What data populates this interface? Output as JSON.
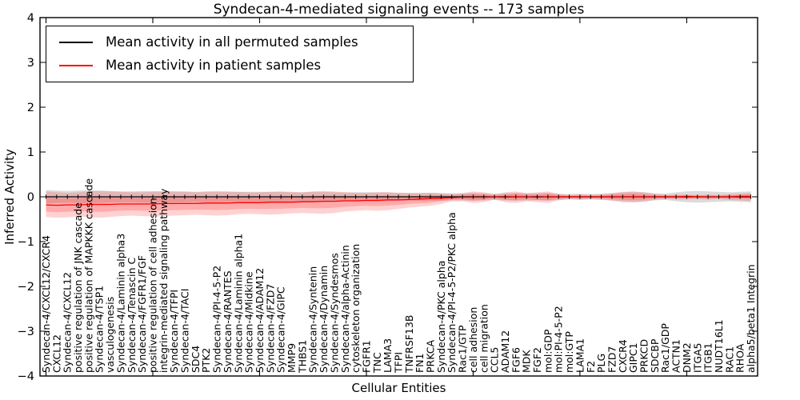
{
  "chart_data": {
    "type": "line",
    "title": "Syndecan-4-mediated signaling events -- 173 samples",
    "xlabel": "Cellular Entities",
    "ylabel": "Inferred Activity",
    "ylim": [
      -4,
      4
    ],
    "yticks": [
      -4,
      -3,
      -2,
      -1,
      0,
      1,
      2,
      3,
      4
    ],
    "x_major_tick_every": 10,
    "grid": false,
    "legend_position": "upper left",
    "legend": {
      "entries": [
        {
          "label": "Mean activity in all permuted samples",
          "color": "#000000"
        },
        {
          "label": "Mean activity in patient samples",
          "color": "#ff0000"
        }
      ]
    },
    "colors": {
      "patient_line": "#ff0000",
      "permuted_line": "#000000",
      "patient_band": "#ff3333",
      "permuted_band": "#888888",
      "axis": "#000000"
    },
    "categories": [
      "Syndecan-4/CXCL12/CXCR4",
      "CXCL12",
      "Syndecan-4/CXCL12",
      "positive regulation of JNK cascade",
      "positive regulation of MAPKKK cascade",
      "Syndecan-4/TSP1",
      "vasculogenesis",
      "Syndecan-4/Laminin alpha3",
      "Syndecan-4/Tenascin C",
      "Syndecan-4/FGFR1/FGF",
      "positive regulation of cell adhesion",
      "integrin-mediated signaling pathway",
      "Syndecan-4/TFPI",
      "Syndecan-4/TACI",
      "SDC4",
      "PTK2",
      "Syndecan-4/PI-4-5-P2",
      "Syndecan-4/RANTES",
      "Syndecan-4/Laminin alpha1",
      "Syndecan-4/Midkine",
      "Syndecan-4/ADAM12",
      "Syndecan-4/FZD7",
      "Syndecan-4/GIPC",
      "MMP9",
      "THBS1",
      "Syndecan-4/Syntenin",
      "Syndecan-4/Dynamin",
      "Syndecan-4/Syndesmos",
      "Syndecan-4/alpha-Actinin",
      "cytoskeleton organization",
      "FGFR1",
      "TNC",
      "LAMA3",
      "TFPI",
      "TNFRSF13B",
      "FN1",
      "PRKCA",
      "Syndecan-4/PKC alpha",
      "Syndecan-4/PI-4-5-P2/PKC alpha",
      "Rac1/GTP",
      "cell adhesion",
      "cell migration",
      "CCL5",
      "ADAM12",
      "FGF6",
      "MDK",
      "FGF2",
      "mol:GDP",
      "mol:PI-4-5-P2",
      "mol:GTP",
      "LAMA1",
      "F2",
      "PLG",
      "FZD7",
      "CXCR4",
      "GIPC1",
      "PRKCD",
      "SDCBP",
      "Rac1/GDP",
      "ACTN1",
      "DNM2",
      "ITGA5",
      "ITGB1",
      "NUDT16L1",
      "RAC1",
      "RHOA",
      "alpha5/beta1 Integrin"
    ],
    "series": [
      {
        "name": "Mean activity in all permuted samples",
        "color": "#000000",
        "values": [
          0,
          0,
          0,
          0,
          0,
          0,
          0,
          0,
          0,
          0,
          0,
          0,
          0,
          0,
          0,
          0,
          0,
          0,
          0,
          0,
          0,
          0,
          0,
          0,
          0,
          0,
          0,
          0,
          0,
          0,
          0,
          0,
          0,
          0,
          0,
          0,
          0,
          0,
          0,
          0,
          0,
          0,
          0,
          0,
          0,
          0,
          0,
          0,
          0,
          0,
          0,
          0,
          0,
          0,
          0,
          0,
          0,
          0,
          0,
          0,
          0,
          0,
          0,
          0,
          0,
          0,
          0
        ],
        "band_halfwidth": [
          0.15,
          0.14,
          0.13,
          0.14,
          0.15,
          0.14,
          0.13,
          0.12,
          0.12,
          0.13,
          0.13,
          0.12,
          0.12,
          0.12,
          0.11,
          0.12,
          0.12,
          0.11,
          0.11,
          0.11,
          0.11,
          0.11,
          0.11,
          0.1,
          0.1,
          0.11,
          0.11,
          0.1,
          0.1,
          0.1,
          0.1,
          0.1,
          0.1,
          0.09,
          0.09,
          0.09,
          0.09,
          0.08,
          0.08,
          0.08,
          0.09,
          0.08,
          0.07,
          0.08,
          0.09,
          0.08,
          0.08,
          0.09,
          0.07,
          0.06,
          0.07,
          0.06,
          0.07,
          0.08,
          0.1,
          0.11,
          0.1,
          0.08,
          0.07,
          0.1,
          0.12,
          0.13,
          0.12,
          0.11,
          0.1,
          0.11,
          0.12
        ]
      },
      {
        "name": "Mean activity in patient samples",
        "color": "#ff0000",
        "values": [
          -0.18,
          -0.19,
          -0.18,
          -0.18,
          -0.17,
          -0.17,
          -0.17,
          -0.16,
          -0.16,
          -0.16,
          -0.16,
          -0.15,
          -0.15,
          -0.15,
          -0.15,
          -0.14,
          -0.14,
          -0.14,
          -0.13,
          -0.13,
          -0.13,
          -0.12,
          -0.12,
          -0.12,
          -0.11,
          -0.11,
          -0.1,
          -0.1,
          -0.09,
          -0.09,
          -0.08,
          -0.08,
          -0.07,
          -0.07,
          -0.06,
          -0.05,
          -0.04,
          -0.03,
          -0.02,
          -0.01,
          -0.01,
          -0.01,
          0.0,
          -0.01,
          0.0,
          0.0,
          -0.01,
          0.0,
          0.0,
          0.0,
          0.0,
          0.0,
          0.0,
          0.0,
          0.0,
          0.0,
          0.0,
          0.0,
          0.0,
          0.0,
          0.01,
          0.0,
          0.0,
          0.0,
          0.0,
          0.01,
          0.01
        ],
        "band_upper": [
          0.12,
          0.1,
          0.09,
          0.1,
          0.12,
          0.13,
          0.12,
          0.11,
          0.1,
          0.1,
          0.11,
          0.12,
          0.12,
          0.11,
          0.1,
          0.11,
          0.12,
          0.12,
          0.11,
          0.1,
          0.1,
          0.11,
          0.12,
          0.11,
          0.1,
          0.12,
          0.13,
          0.12,
          0.1,
          0.09,
          0.09,
          0.1,
          0.1,
          0.09,
          0.08,
          0.08,
          0.09,
          0.08,
          0.06,
          0.08,
          0.12,
          0.1,
          0.05,
          0.1,
          0.12,
          0.08,
          0.1,
          0.12,
          0.06,
          0.04,
          0.05,
          0.04,
          0.05,
          0.08,
          0.11,
          0.12,
          0.1,
          0.06,
          0.04,
          0.05,
          0.05,
          0.04,
          0.05,
          0.04,
          0.06,
          0.07,
          0.09
        ],
        "band_lower": [
          -0.45,
          -0.47,
          -0.46,
          -0.44,
          -0.45,
          -0.47,
          -0.45,
          -0.43,
          -0.42,
          -0.43,
          -0.44,
          -0.43,
          -0.42,
          -0.41,
          -0.4,
          -0.41,
          -0.42,
          -0.41,
          -0.39,
          -0.38,
          -0.39,
          -0.4,
          -0.39,
          -0.37,
          -0.36,
          -0.37,
          -0.38,
          -0.36,
          -0.33,
          -0.31,
          -0.3,
          -0.31,
          -0.3,
          -0.27,
          -0.24,
          -0.22,
          -0.2,
          -0.16,
          -0.1,
          -0.1,
          -0.14,
          -0.12,
          -0.06,
          -0.12,
          -0.14,
          -0.1,
          -0.12,
          -0.14,
          -0.08,
          -0.05,
          -0.06,
          -0.05,
          -0.06,
          -0.09,
          -0.12,
          -0.13,
          -0.11,
          -0.07,
          -0.05,
          -0.06,
          -0.06,
          -0.05,
          -0.06,
          -0.05,
          -0.07,
          -0.08,
          -0.1
        ]
      }
    ]
  }
}
